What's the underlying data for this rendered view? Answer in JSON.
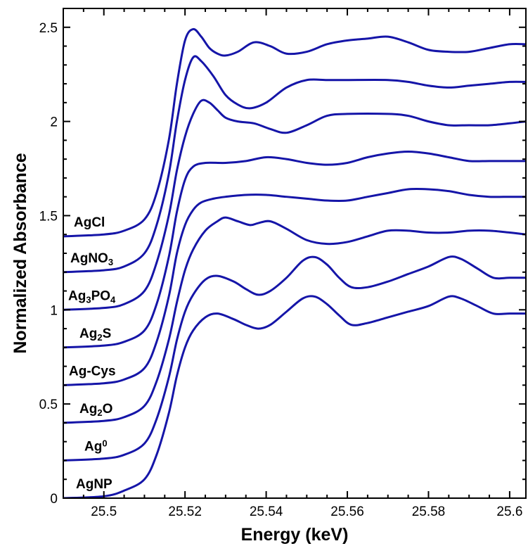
{
  "colors": {
    "series": "#1515a8",
    "axis": "#000000",
    "background": "#ffffff"
  },
  "chart_data": {
    "type": "line",
    "title": "",
    "xlabel": "Energy (keV)",
    "ylabel": "Normalized Absorbance",
    "xlim": [
      25.49,
      25.604
    ],
    "ylim": [
      0,
      2.6
    ],
    "grid": false,
    "legend": "none (series labeled directly at left of each curve)",
    "x_ticks": [
      25.5,
      25.52,
      25.54,
      25.56,
      25.58,
      25.6
    ],
    "x_tick_labels": [
      "25.5",
      "25.52",
      "25.54",
      "25.56",
      "25.58",
      "25.6"
    ],
    "y_ticks": [
      0,
      0.5,
      1,
      1.5,
      2,
      2.5
    ],
    "y_tick_labels": [
      "0",
      "0.5",
      "1",
      "1.5",
      "2",
      "2.5"
    ],
    "series": [
      {
        "name": "AgCl",
        "label_parts": [
          {
            "t": "AgCl"
          }
        ],
        "points": [
          [
            25.49,
            1.39
          ],
          [
            25.5,
            1.4
          ],
          [
            25.505,
            1.42
          ],
          [
            25.51,
            1.48
          ],
          [
            25.513,
            1.62
          ],
          [
            25.516,
            1.9
          ],
          [
            25.518,
            2.2
          ],
          [
            25.52,
            2.43
          ],
          [
            25.522,
            2.49
          ],
          [
            25.524,
            2.45
          ],
          [
            25.526,
            2.39
          ],
          [
            25.528,
            2.36
          ],
          [
            25.53,
            2.35
          ],
          [
            25.533,
            2.37
          ],
          [
            25.537,
            2.42
          ],
          [
            25.541,
            2.4
          ],
          [
            25.545,
            2.36
          ],
          [
            25.55,
            2.37
          ],
          [
            25.555,
            2.41
          ],
          [
            25.56,
            2.43
          ],
          [
            25.565,
            2.44
          ],
          [
            25.57,
            2.45
          ],
          [
            25.575,
            2.42
          ],
          [
            25.58,
            2.38
          ],
          [
            25.585,
            2.37
          ],
          [
            25.59,
            2.37
          ],
          [
            25.595,
            2.39
          ],
          [
            25.6,
            2.41
          ],
          [
            25.604,
            2.41
          ]
        ]
      },
      {
        "name": "AgNO3",
        "label_parts": [
          {
            "t": "AgNO"
          },
          {
            "t": "3",
            "sub": true
          }
        ],
        "points": [
          [
            25.49,
            1.2
          ],
          [
            25.5,
            1.21
          ],
          [
            25.505,
            1.23
          ],
          [
            25.51,
            1.3
          ],
          [
            25.513,
            1.45
          ],
          [
            25.516,
            1.72
          ],
          [
            25.518,
            2.0
          ],
          [
            25.52,
            2.22
          ],
          [
            25.522,
            2.34
          ],
          [
            25.524,
            2.32
          ],
          [
            25.527,
            2.24
          ],
          [
            25.53,
            2.14
          ],
          [
            25.533,
            2.09
          ],
          [
            25.536,
            2.07
          ],
          [
            25.54,
            2.1
          ],
          [
            25.545,
            2.18
          ],
          [
            25.55,
            2.22
          ],
          [
            25.555,
            2.22
          ],
          [
            25.56,
            2.22
          ],
          [
            25.57,
            2.22
          ],
          [
            25.575,
            2.21
          ],
          [
            25.58,
            2.19
          ],
          [
            25.585,
            2.18
          ],
          [
            25.59,
            2.19
          ],
          [
            25.595,
            2.2
          ],
          [
            25.6,
            2.21
          ],
          [
            25.604,
            2.21
          ]
        ]
      },
      {
        "name": "Ag3PO4",
        "label_parts": [
          {
            "t": "Ag"
          },
          {
            "t": "3",
            "sub": true
          },
          {
            "t": "PO"
          },
          {
            "t": "4",
            "sub": true
          }
        ],
        "points": [
          [
            25.49,
            1.0
          ],
          [
            25.5,
            1.01
          ],
          [
            25.505,
            1.03
          ],
          [
            25.51,
            1.1
          ],
          [
            25.513,
            1.25
          ],
          [
            25.516,
            1.5
          ],
          [
            25.518,
            1.74
          ],
          [
            25.52,
            1.92
          ],
          [
            25.522,
            2.04
          ],
          [
            25.524,
            2.11
          ],
          [
            25.526,
            2.1
          ],
          [
            25.528,
            2.06
          ],
          [
            25.53,
            2.02
          ],
          [
            25.533,
            2.0
          ],
          [
            25.537,
            1.99
          ],
          [
            25.541,
            1.96
          ],
          [
            25.545,
            1.94
          ],
          [
            25.55,
            1.98
          ],
          [
            25.555,
            2.03
          ],
          [
            25.56,
            2.04
          ],
          [
            25.57,
            2.04
          ],
          [
            25.575,
            2.03
          ],
          [
            25.58,
            2.0
          ],
          [
            25.585,
            1.98
          ],
          [
            25.59,
            1.98
          ],
          [
            25.595,
            1.98
          ],
          [
            25.6,
            1.99
          ],
          [
            25.604,
            2.0
          ]
        ]
      },
      {
        "name": "Ag2S",
        "label_parts": [
          {
            "t": "Ag"
          },
          {
            "t": "2",
            "sub": true
          },
          {
            "t": "S"
          }
        ],
        "points": [
          [
            25.49,
            0.8
          ],
          [
            25.5,
            0.81
          ],
          [
            25.505,
            0.83
          ],
          [
            25.51,
            0.89
          ],
          [
            25.513,
            1.03
          ],
          [
            25.516,
            1.28
          ],
          [
            25.518,
            1.52
          ],
          [
            25.52,
            1.69
          ],
          [
            25.522,
            1.76
          ],
          [
            25.525,
            1.78
          ],
          [
            25.53,
            1.78
          ],
          [
            25.535,
            1.79
          ],
          [
            25.54,
            1.81
          ],
          [
            25.545,
            1.8
          ],
          [
            25.55,
            1.78
          ],
          [
            25.555,
            1.77
          ],
          [
            25.56,
            1.78
          ],
          [
            25.565,
            1.81
          ],
          [
            25.57,
            1.83
          ],
          [
            25.575,
            1.84
          ],
          [
            25.58,
            1.83
          ],
          [
            25.585,
            1.81
          ],
          [
            25.59,
            1.79
          ],
          [
            25.595,
            1.79
          ],
          [
            25.6,
            1.79
          ],
          [
            25.604,
            1.79
          ]
        ]
      },
      {
        "name": "Ag-Cys",
        "label_parts": [
          {
            "t": "Ag-Cys"
          }
        ],
        "points": [
          [
            25.49,
            0.6
          ],
          [
            25.5,
            0.61
          ],
          [
            25.505,
            0.63
          ],
          [
            25.51,
            0.69
          ],
          [
            25.513,
            0.83
          ],
          [
            25.516,
            1.07
          ],
          [
            25.518,
            1.3
          ],
          [
            25.52,
            1.45
          ],
          [
            25.522,
            1.53
          ],
          [
            25.524,
            1.57
          ],
          [
            25.527,
            1.59
          ],
          [
            25.53,
            1.6
          ],
          [
            25.535,
            1.61
          ],
          [
            25.54,
            1.61
          ],
          [
            25.545,
            1.6
          ],
          [
            25.55,
            1.59
          ],
          [
            25.555,
            1.58
          ],
          [
            25.56,
            1.58
          ],
          [
            25.565,
            1.6
          ],
          [
            25.57,
            1.62
          ],
          [
            25.575,
            1.64
          ],
          [
            25.58,
            1.64
          ],
          [
            25.585,
            1.63
          ],
          [
            25.59,
            1.61
          ],
          [
            25.595,
            1.6
          ],
          [
            25.6,
            1.6
          ],
          [
            25.604,
            1.6
          ]
        ]
      },
      {
        "name": "Ag2O",
        "label_parts": [
          {
            "t": "Ag"
          },
          {
            "t": "2",
            "sub": true
          },
          {
            "t": "O"
          }
        ],
        "points": [
          [
            25.49,
            0.4
          ],
          [
            25.5,
            0.41
          ],
          [
            25.505,
            0.43
          ],
          [
            25.51,
            0.49
          ],
          [
            25.513,
            0.62
          ],
          [
            25.516,
            0.84
          ],
          [
            25.518,
            1.04
          ],
          [
            25.52,
            1.21
          ],
          [
            25.522,
            1.32
          ],
          [
            25.525,
            1.42
          ],
          [
            25.528,
            1.47
          ],
          [
            25.53,
            1.49
          ],
          [
            25.533,
            1.47
          ],
          [
            25.536,
            1.45
          ],
          [
            25.538,
            1.46
          ],
          [
            25.541,
            1.47
          ],
          [
            25.545,
            1.43
          ],
          [
            25.55,
            1.37
          ],
          [
            25.555,
            1.35
          ],
          [
            25.56,
            1.36
          ],
          [
            25.565,
            1.39
          ],
          [
            25.57,
            1.42
          ],
          [
            25.575,
            1.42
          ],
          [
            25.58,
            1.41
          ],
          [
            25.585,
            1.41
          ],
          [
            25.59,
            1.42
          ],
          [
            25.595,
            1.42
          ],
          [
            25.6,
            1.41
          ],
          [
            25.604,
            1.4
          ]
        ]
      },
      {
        "name": "Ag0",
        "label_parts": [
          {
            "t": "Ag"
          },
          {
            "t": "0",
            "sup": true
          }
        ],
        "points": [
          [
            25.49,
            0.2
          ],
          [
            25.5,
            0.21
          ],
          [
            25.505,
            0.23
          ],
          [
            25.51,
            0.29
          ],
          [
            25.513,
            0.42
          ],
          [
            25.516,
            0.64
          ],
          [
            25.518,
            0.84
          ],
          [
            25.52,
            0.99
          ],
          [
            25.522,
            1.08
          ],
          [
            25.525,
            1.16
          ],
          [
            25.528,
            1.18
          ],
          [
            25.532,
            1.15
          ],
          [
            25.535,
            1.11
          ],
          [
            25.538,
            1.08
          ],
          [
            25.541,
            1.1
          ],
          [
            25.545,
            1.17
          ],
          [
            25.549,
            1.26
          ],
          [
            25.552,
            1.28
          ],
          [
            25.555,
            1.24
          ],
          [
            25.558,
            1.17
          ],
          [
            25.561,
            1.12
          ],
          [
            25.565,
            1.12
          ],
          [
            25.57,
            1.15
          ],
          [
            25.575,
            1.19
          ],
          [
            25.58,
            1.23
          ],
          [
            25.585,
            1.28
          ],
          [
            25.588,
            1.27
          ],
          [
            25.592,
            1.22
          ],
          [
            25.596,
            1.17
          ],
          [
            25.6,
            1.17
          ],
          [
            25.604,
            1.17
          ]
        ]
      },
      {
        "name": "AgNP",
        "label_parts": [
          {
            "t": "AgNP"
          }
        ],
        "points": [
          [
            25.49,
            0.0
          ],
          [
            25.5,
            0.01
          ],
          [
            25.505,
            0.04
          ],
          [
            25.51,
            0.1
          ],
          [
            25.513,
            0.23
          ],
          [
            25.516,
            0.45
          ],
          [
            25.518,
            0.65
          ],
          [
            25.52,
            0.8
          ],
          [
            25.522,
            0.89
          ],
          [
            25.525,
            0.96
          ],
          [
            25.528,
            0.98
          ],
          [
            25.532,
            0.95
          ],
          [
            25.535,
            0.92
          ],
          [
            25.538,
            0.9
          ],
          [
            25.541,
            0.92
          ],
          [
            25.545,
            0.99
          ],
          [
            25.549,
            1.06
          ],
          [
            25.552,
            1.07
          ],
          [
            25.555,
            1.03
          ],
          [
            25.558,
            0.97
          ],
          [
            25.561,
            0.92
          ],
          [
            25.565,
            0.93
          ],
          [
            25.57,
            0.96
          ],
          [
            25.575,
            0.99
          ],
          [
            25.58,
            1.02
          ],
          [
            25.585,
            1.07
          ],
          [
            25.588,
            1.06
          ],
          [
            25.592,
            1.02
          ],
          [
            25.596,
            0.98
          ],
          [
            25.6,
            0.98
          ],
          [
            25.604,
            0.98
          ]
        ]
      }
    ]
  }
}
